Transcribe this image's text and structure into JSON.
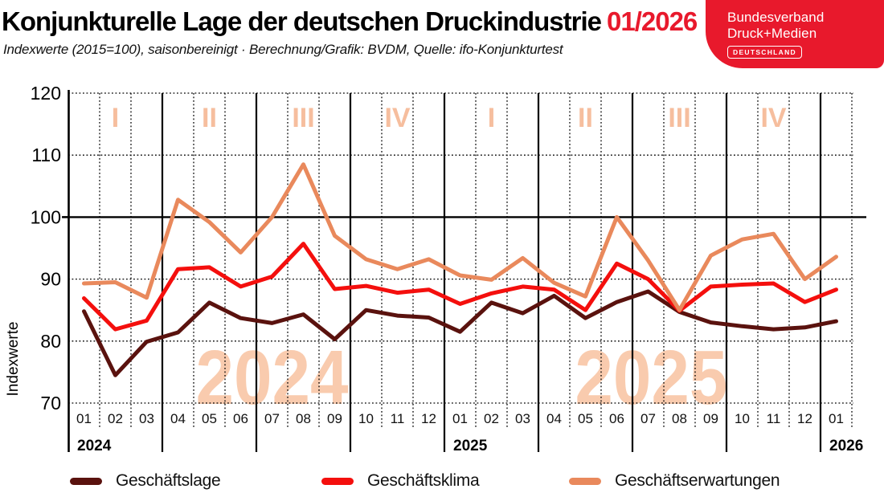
{
  "header": {
    "title": "Konjunkturelle Lage der deutschen Druckindustrie",
    "title_period": "01/2026",
    "subtitle": "Indexwerte (2015=100), saisonbereinigt · Berechnung/Grafik: BVDM, Quelle: ifo-Konjunkturtest"
  },
  "logo": {
    "line1": "Bundesverband",
    "line2": "Druck+Medien",
    "badge": "DEUTSCHLAND",
    "bg_color": "#E8192C"
  },
  "colors": {
    "accent_red": "#E8192C",
    "quarter_label": "#F6BE9E",
    "watermark": "#F9CBAE",
    "grid": "#000000"
  },
  "chart_data": {
    "type": "line",
    "ylabel": "Indexwerte",
    "ylim": [
      70,
      120
    ],
    "yticks": [
      70,
      80,
      90,
      100,
      110,
      120
    ],
    "solid_gridline_at": 100,
    "x_labels": [
      "01",
      "02",
      "03",
      "04",
      "05",
      "06",
      "07",
      "08",
      "09",
      "10",
      "11",
      "12",
      "01",
      "02",
      "03",
      "04",
      "05",
      "06",
      "07",
      "08",
      "09",
      "10",
      "11",
      "12",
      "01"
    ],
    "years": [
      {
        "label": "2024",
        "start_index": 0
      },
      {
        "label": "2025",
        "start_index": 12
      },
      {
        "label": "2026",
        "start_index": 24
      }
    ],
    "quarter_labels": [
      "I",
      "II",
      "III",
      "IV",
      "I",
      "II",
      "III",
      "IV"
    ],
    "watermarks": [
      {
        "text": "2024",
        "month_pos": 6.5
      },
      {
        "text": "2025",
        "month_pos": 18.6
      }
    ],
    "series": [
      {
        "name": "Geschäftslage",
        "color": "#5A120E",
        "values": [
          84.8,
          74.5,
          79.9,
          81.4,
          86.2,
          83.7,
          82.9,
          84.3,
          80.3,
          85.0,
          84.1,
          83.8,
          81.5,
          86.2,
          84.5,
          87.3,
          83.7,
          86.3,
          88.0,
          84.7,
          83.0,
          82.4,
          81.9,
          82.2,
          83.2
        ]
      },
      {
        "name": "Geschäftsklima",
        "color": "#F40F0D",
        "values": [
          86.9,
          81.9,
          83.3,
          91.6,
          91.9,
          88.8,
          90.4,
          95.7,
          88.4,
          88.9,
          87.8,
          88.3,
          86.0,
          87.7,
          88.8,
          88.3,
          85.0,
          92.5,
          90.0,
          84.9,
          88.8,
          89.1,
          89.3,
          86.3,
          88.3
        ]
      },
      {
        "name": "Geschäftserwartungen",
        "color": "#E9895C",
        "values": [
          89.3,
          89.5,
          87.0,
          102.8,
          99.2,
          94.3,
          100.0,
          108.5,
          97.0,
          93.2,
          91.6,
          93.2,
          90.6,
          89.9,
          93.4,
          89.4,
          87.2,
          100.0,
          93.0,
          85.0,
          93.8,
          96.4,
          97.3,
          90.0,
          93.6
        ]
      }
    ]
  },
  "legend": {
    "items": [
      {
        "label": "Geschäftslage"
      },
      {
        "label": "Geschäftsklima"
      },
      {
        "label": "Geschäftserwartungen"
      }
    ]
  }
}
